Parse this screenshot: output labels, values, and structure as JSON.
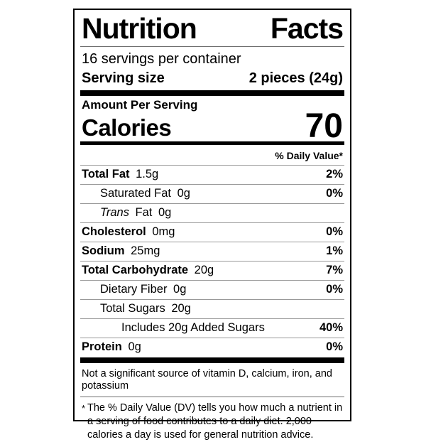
{
  "colors": {
    "text": "#000000",
    "separator": "#999999",
    "background": "#ffffff"
  },
  "header": {
    "title_left": "Nutrition",
    "title_right": "Facts",
    "servings_per_container": "16 servings per container",
    "serving_size_label": "Serving size",
    "serving_size_value": "2 pieces (24g)"
  },
  "calories": {
    "amount_per_serving_label": "Amount Per Serving",
    "calories_label": "Calories",
    "calories_value": "70"
  },
  "daily_value_header": "% Daily Value*",
  "nutrients": [
    {
      "name": "Total Fat",
      "amount": "1.5g",
      "dv": "2%"
    },
    {
      "name": "Saturated Fat",
      "amount": "0g",
      "dv": "0%"
    },
    {
      "name_italic": "Trans",
      "name": "Fat",
      "amount": "0g",
      "dv": ""
    },
    {
      "name": "Cholesterol",
      "amount": "0mg",
      "dv": "0%"
    },
    {
      "name": "Sodium",
      "amount": "25mg",
      "dv": "1%"
    },
    {
      "name": "Total Carbohydrate",
      "amount": "20g",
      "dv": "7%"
    },
    {
      "name": "Dietary Fiber",
      "amount": "0g",
      "dv": "0%"
    },
    {
      "name": "Total Sugars",
      "amount": "20g",
      "dv": ""
    },
    {
      "name": "Includes 20g Added Sugars",
      "amount": "",
      "dv": "40%"
    },
    {
      "name": "Protein",
      "amount": "0g",
      "dv": "0%"
    }
  ],
  "footnotes": {
    "not_significant": "Not a significant source of vitamin D, calcium, iron, and potassium",
    "dv_asterisk": "*",
    "dv_note": "The % Daily Value (DV) tells you how much a nutrient in a serving of food contributes to a daily diet. 2,000 calories a day is used for general nutrition advice."
  }
}
